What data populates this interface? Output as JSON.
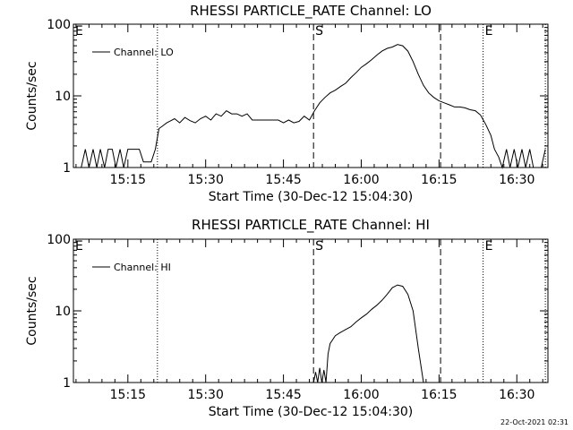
{
  "footer_timestamp": "22-Oct-2021 02:31",
  "chart_data": [
    {
      "type": "line",
      "title": "RHESSI PARTICLE_RATE Channel: LO",
      "xlabel": "Start Time (30-Dec-12 15:04:30)",
      "ylabel": "Counts/sec",
      "yscale": "log",
      "ylim": [
        1,
        100
      ],
      "xlim_minutes": [
        4.5,
        96.0
      ],
      "xtick_labels": [
        "15:15",
        "15:30",
        "15:45",
        "16:00",
        "16:15",
        "16:30"
      ],
      "xtick_minutes": [
        15,
        30,
        45,
        60,
        75,
        90
      ],
      "ytick_labels": [
        "1",
        "10",
        "100"
      ],
      "ytick_values": [
        1,
        10,
        100
      ],
      "legend": "Channel: LO",
      "legend_position": "top-left",
      "markers": [
        {
          "label": "E",
          "minute": 4.5,
          "style": "dotted"
        },
        {
          "label": "",
          "minute": 20.7,
          "style": "dotted"
        },
        {
          "label": "S",
          "minute": 50.8,
          "style": "dashed"
        },
        {
          "label": "",
          "minute": 75.3,
          "style": "dashed"
        },
        {
          "label": "E",
          "minute": 83.5,
          "style": "dotted"
        },
        {
          "label": "",
          "minute": 95.5,
          "style": "dotted"
        }
      ],
      "series": [
        {
          "x": [
            6,
            6.8,
            7.5,
            8.3,
            9,
            9.7,
            10.5,
            11.2,
            12,
            12.7,
            13.5,
            14.2,
            15,
            15.7,
            16.5,
            17.2,
            18,
            18.7,
            19.5,
            20.3,
            21,
            21.7,
            22.5,
            23.3,
            24,
            25,
            26,
            27,
            28,
            29,
            30,
            31,
            32,
            33,
            34,
            35,
            36,
            37,
            38,
            39,
            40,
            41,
            42,
            43,
            44,
            45,
            46,
            47,
            48,
            49,
            50,
            51,
            52,
            53,
            54,
            55,
            56,
            57,
            58,
            59,
            60,
            61,
            62,
            63,
            64,
            65,
            66,
            67,
            68,
            69,
            70,
            71,
            72,
            73,
            74,
            75,
            76,
            77,
            78,
            79,
            80,
            81,
            82,
            83,
            84,
            85,
            85.7,
            86.5,
            87.2,
            88,
            88.7,
            89.5,
            90.2,
            91,
            91.7,
            92.5,
            93.2,
            94,
            94.7,
            95.5
          ],
          "y": [
            1,
            1.8,
            1,
            1.8,
            1,
            1.8,
            1,
            1.8,
            1.8,
            1,
            1.8,
            1,
            1.8,
            1.8,
            1.8,
            1.8,
            1.2,
            1.2,
            1.2,
            1.8,
            3.5,
            3.8,
            4.2,
            4.5,
            4.8,
            4.2,
            5,
            4.5,
            4.2,
            4.8,
            5.2,
            4.6,
            5.6,
            5.2,
            6.2,
            5.6,
            5.6,
            5.2,
            5.6,
            4.6,
            4.6,
            4.6,
            4.6,
            4.6,
            4.6,
            4.2,
            4.6,
            4.2,
            4.4,
            5.2,
            4.6,
            6.2,
            8,
            9.5,
            11,
            12,
            13.5,
            15,
            18,
            21,
            25,
            28,
            32,
            37,
            42,
            46,
            48,
            52,
            50,
            42,
            30,
            20,
            14,
            11,
            9.5,
            8.5,
            8,
            7.5,
            7,
            7,
            6.8,
            6.4,
            6.2,
            5.4,
            4,
            2.8,
            1.8,
            1.4,
            1,
            1.8,
            1,
            1.8,
            1,
            1.8,
            1,
            1.8,
            1,
            1,
            1,
            1.8
          ]
        }
      ]
    },
    {
      "type": "line",
      "title": "RHESSI PARTICLE_RATE Channel: HI",
      "xlabel": "Start Time (30-Dec-12 15:04:30)",
      "ylabel": "Counts/sec",
      "yscale": "log",
      "ylim": [
        1,
        100
      ],
      "xlim_minutes": [
        4.5,
        96.0
      ],
      "xtick_labels": [
        "15:15",
        "15:30",
        "15:45",
        "16:00",
        "16:15",
        "16:30"
      ],
      "xtick_minutes": [
        15,
        30,
        45,
        60,
        75,
        90
      ],
      "ytick_labels": [
        "1",
        "10",
        "100"
      ],
      "ytick_values": [
        1,
        10,
        100
      ],
      "legend": "Channel: HI",
      "legend_position": "top-left",
      "markers": [
        {
          "label": "E",
          "minute": 4.5,
          "style": "dotted"
        },
        {
          "label": "",
          "minute": 20.7,
          "style": "dotted"
        },
        {
          "label": "S",
          "minute": 50.8,
          "style": "dashed"
        },
        {
          "label": "",
          "minute": 75.3,
          "style": "dashed"
        },
        {
          "label": "E",
          "minute": 83.5,
          "style": "dotted"
        },
        {
          "label": "",
          "minute": 95.5,
          "style": "dotted"
        }
      ],
      "series": [
        {
          "x": [
            50.8,
            51.2,
            51.6,
            52,
            52.4,
            52.8,
            53.2,
            53.6,
            54,
            55,
            56,
            57,
            58,
            59,
            60,
            61,
            62,
            63,
            64,
            65,
            66,
            67,
            68,
            69,
            70,
            71,
            72
          ],
          "y": [
            1,
            1.4,
            1,
            1.6,
            1,
            1.5,
            1,
            2.5,
            3.5,
            4.5,
            5,
            5.5,
            6,
            7,
            8,
            9,
            10.5,
            12,
            14,
            17,
            21,
            23,
            22,
            17,
            10,
            3,
            1
          ]
        }
      ]
    }
  ]
}
